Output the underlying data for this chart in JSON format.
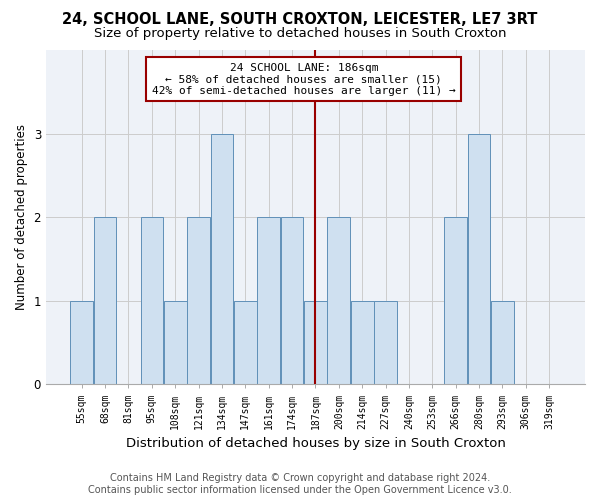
{
  "title": "24, SCHOOL LANE, SOUTH CROXTON, LEICESTER, LE7 3RT",
  "subtitle": "Size of property relative to detached houses in South Croxton",
  "xlabel": "Distribution of detached houses by size in South Croxton",
  "ylabel": "Number of detached properties",
  "footer_line1": "Contains HM Land Registry data © Crown copyright and database right 2024.",
  "footer_line2": "Contains public sector information licensed under the Open Government Licence v3.0.",
  "categories": [
    "55sqm",
    "68sqm",
    "81sqm",
    "95sqm",
    "108sqm",
    "121sqm",
    "134sqm",
    "147sqm",
    "161sqm",
    "174sqm",
    "187sqm",
    "200sqm",
    "214sqm",
    "227sqm",
    "240sqm",
    "253sqm",
    "266sqm",
    "280sqm",
    "293sqm",
    "306sqm",
    "319sqm"
  ],
  "values": [
    1,
    2,
    0,
    2,
    1,
    2,
    3,
    1,
    2,
    2,
    1,
    2,
    1,
    1,
    0,
    0,
    2,
    3,
    1,
    0,
    0
  ],
  "bar_color": "#cfe0f0",
  "bar_edge_color": "#6090b8",
  "reference_line_x_label": "187sqm",
  "reference_line_color": "#990000",
  "annotation_text": "24 SCHOOL LANE: 186sqm\n← 58% of detached houses are smaller (15)\n42% of semi-detached houses are larger (11) →",
  "annotation_box_color": "#ffffff",
  "annotation_box_edge_color": "#990000",
  "ylim": [
    0,
    4
  ],
  "yticks": [
    0,
    1,
    2,
    3
  ],
  "bg_color": "#ffffff",
  "plot_bg_color": "#eef2f8",
  "title_fontsize": 10.5,
  "subtitle_fontsize": 9.5,
  "xlabel_fontsize": 9.5,
  "ylabel_fontsize": 8.5,
  "tick_fontsize": 7,
  "annotation_fontsize": 8,
  "footer_fontsize": 7
}
